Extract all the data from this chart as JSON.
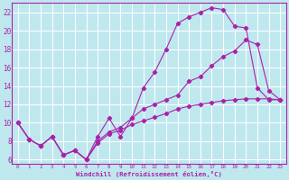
{
  "xlabel": "Windchill (Refroidissement éolien,°C)",
  "background_color": "#bfe8ee",
  "grid_color": "#ffffff",
  "line_color": "#aa22aa",
  "xlim": [
    -0.5,
    23.5
  ],
  "ylim": [
    5.5,
    23.0
  ],
  "xticks": [
    0,
    1,
    2,
    3,
    4,
    5,
    6,
    7,
    8,
    9,
    10,
    11,
    12,
    13,
    14,
    15,
    16,
    17,
    18,
    19,
    20,
    21,
    22,
    23
  ],
  "yticks": [
    6,
    8,
    10,
    12,
    14,
    16,
    18,
    20,
    22
  ],
  "curve1_x": [
    0,
    1,
    2,
    3,
    4,
    5,
    6,
    7,
    8,
    9,
    10,
    11,
    12,
    13,
    14,
    15,
    16,
    17,
    18,
    19,
    20,
    21,
    22,
    23
  ],
  "curve1_y": [
    10.0,
    8.2,
    7.5,
    8.5,
    6.5,
    7.0,
    6.0,
    8.5,
    10.5,
    8.5,
    10.5,
    13.8,
    15.5,
    18.0,
    20.8,
    21.5,
    22.0,
    22.5,
    22.3,
    20.5,
    20.3,
    13.8,
    12.5,
    12.5
  ],
  "curve2_x": [
    0,
    1,
    2,
    3,
    4,
    5,
    6,
    7,
    8,
    9,
    10,
    11,
    12,
    13,
    14,
    15,
    16,
    17,
    18,
    19,
    20,
    21,
    22,
    23
  ],
  "curve2_y": [
    10.0,
    8.2,
    7.5,
    8.5,
    6.5,
    7.0,
    6.0,
    8.0,
    9.0,
    9.5,
    10.5,
    11.5,
    12.0,
    12.5,
    13.0,
    14.5,
    15.0,
    16.2,
    17.2,
    17.8,
    19.0,
    18.5,
    13.5,
    12.5
  ],
  "curve3_x": [
    0,
    1,
    2,
    3,
    4,
    5,
    6,
    7,
    8,
    9,
    10,
    11,
    12,
    13,
    14,
    15,
    16,
    17,
    18,
    19,
    20,
    21,
    22,
    23
  ],
  "curve3_y": [
    10.0,
    8.2,
    7.5,
    8.5,
    6.5,
    7.0,
    6.0,
    7.8,
    8.8,
    9.2,
    9.8,
    10.2,
    10.6,
    11.0,
    11.5,
    11.8,
    12.0,
    12.2,
    12.4,
    12.5,
    12.6,
    12.6,
    12.6,
    12.5
  ]
}
